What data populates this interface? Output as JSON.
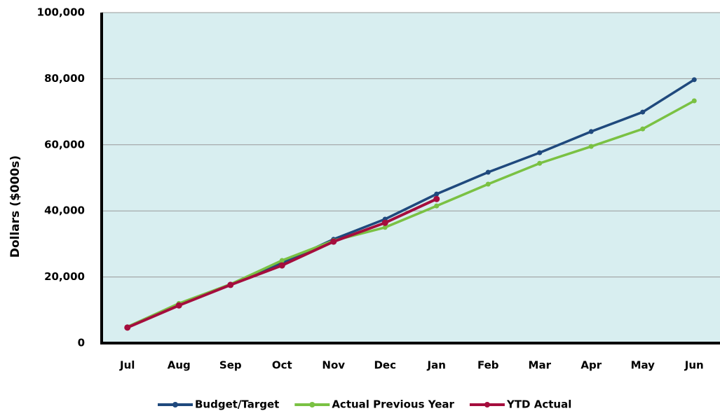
{
  "chart_data": {
    "type": "line",
    "y_label": "Dollars ($000s)",
    "categories": [
      "Jul",
      "Aug",
      "Sep",
      "Oct",
      "Nov",
      "Dec",
      "Jan",
      "Feb",
      "Mar",
      "Apr",
      "May",
      "Jun"
    ],
    "series": [
      {
        "name": "Budget/Target",
        "color": "#1f497d",
        "values": [
          4900,
          11900,
          17800,
          24200,
          31400,
          37500,
          45100,
          51700,
          57600,
          64000,
          69900,
          79700
        ]
      },
      {
        "name": "Actual Previous Year",
        "color": "#7ac143",
        "values": [
          4900,
          12000,
          17800,
          25000,
          31000,
          35000,
          41500,
          48100,
          54400,
          59500,
          64800,
          73300
        ]
      },
      {
        "name": "YTD Actual",
        "color": "#a50d3d",
        "values": [
          4700,
          11400,
          17600,
          23500,
          30700,
          36400,
          43600,
          null,
          null,
          null,
          null,
          null
        ]
      }
    ],
    "ylim": [
      0,
      100000
    ],
    "yticks": [
      0,
      {
        "value": 20000,
        "label": "20,000"
      },
      {
        "value": 40000,
        "label": "40,000"
      },
      {
        "value": 60000,
        "label": "60,000"
      },
      {
        "value": 80000,
        "label": "80,000"
      },
      {
        "value": 100000,
        "label": "100,000"
      }
    ],
    "grid": true,
    "plot_background": "#d8eef0",
    "legend": "bottom"
  }
}
